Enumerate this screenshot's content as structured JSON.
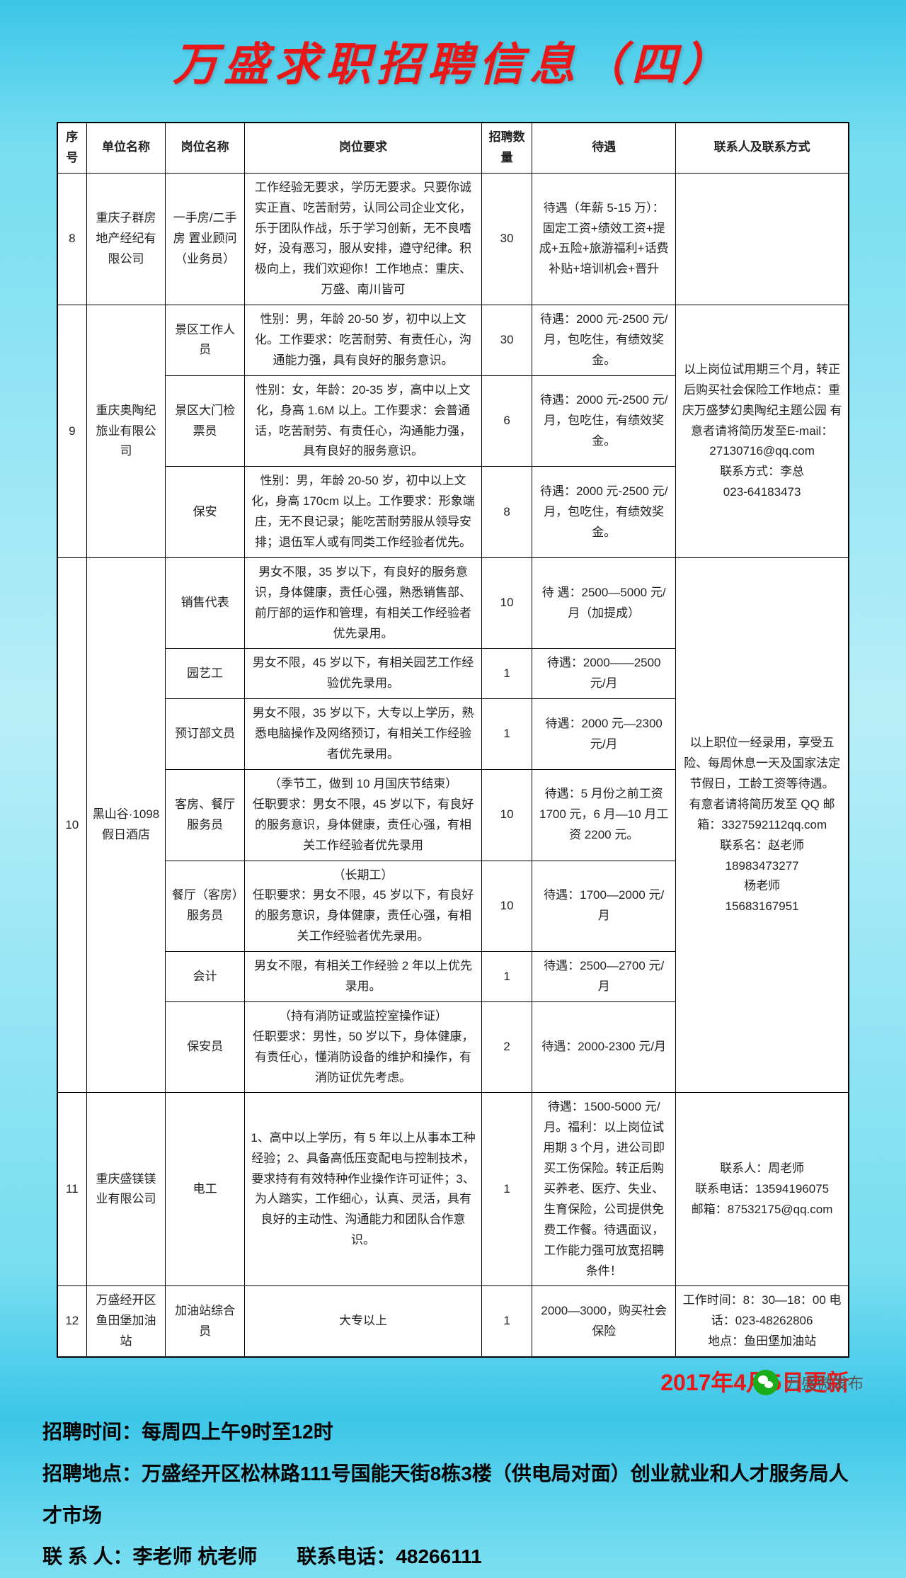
{
  "title": "万盛求职招聘信息（四）",
  "headers": [
    "序号",
    "单位名称",
    "岗位名称",
    "岗位要求",
    "招聘数量",
    "待遇",
    "联系人及联系方式"
  ],
  "rows": [
    {
      "seq": "8",
      "company": "重庆子群房地产经纪有限公司",
      "position": "一手房/二手房 置业顾问（业务员）",
      "req": "工作经验无要求，学历无要求。只要你诚实正直、吃苦耐劳，认同公司企业文化，乐于团队作战，乐于学习创新，无不良嗜好，没有恶习，服从安排，遵守纪律。积极向上，我们欢迎你！工作地点：重庆、万盛、南川皆可",
      "qty": "30",
      "sal": "待遇（年薪 5-15 万）：固定工资+绩效工资+提成+五险+旅游福利+话费补贴+培训机会+晋升",
      "contact": ""
    },
    {
      "seq": "9",
      "company": "重庆奥陶纪旅业有限公司",
      "contact": "以上岗位试用期三个月，转正后购买社会保险工作地点：重庆万盛梦幻奥陶纪主题公园 有意者请将简历发至E-mail：27130716@qq.com\n联系方式：李总\n023-64183473",
      "jobs": [
        {
          "position": "景区工作人员",
          "req": "性别：男，年龄 20-50 岁，初中以上文化。工作要求：吃苦耐劳、有责任心，沟通能力强，具有良好的服务意识。",
          "qty": "30",
          "sal": "待遇：2000 元-2500 元/月，包吃住，有绩效奖金。"
        },
        {
          "position": "景区大门检票员",
          "req": "性别：女，年龄：20-35 岁，高中以上文化，身高 1.6M 以上。工作要求：会普通话，吃苦耐劳、有责任心，沟通能力强，具有良好的服务意识。",
          "qty": "6",
          "sal": "待遇：2000 元-2500 元/月，包吃住，有绩效奖金。"
        },
        {
          "position": "保安",
          "req": "性别：男，年龄 20-50 岁，初中以上文化，身高 170cm 以上。工作要求：形象端庄，无不良记录；能吃苦耐劳服从领导安排；退伍军人或有同类工作经验者优先。",
          "qty": "8",
          "sal": "待遇：2000 元-2500 元/月，包吃住，有绩效奖金。"
        }
      ]
    },
    {
      "seq": "10",
      "company": "黑山谷·1098假日酒店",
      "contact": "以上职位一经录用，享受五险、每周休息一天及国家法定节假日，工龄工资等待遇。\n有意者请将简历发至 QQ 邮箱：3327592112qq.com\n联系名：赵老师\n18983473277\n杨老师\n15683167951",
      "jobs": [
        {
          "position": "销售代表",
          "req": "男女不限，35 岁以下，有良好的服务意识，身体健康，责任心强，熟悉销售部、前厅部的运作和管理，有相关工作经验者优先录用。",
          "qty": "10",
          "sal": "待 遇：2500—5000 元/月（加提成）"
        },
        {
          "position": "园艺工",
          "req": "男女不限，45 岁以下，有相关园艺工作经验优先录用。",
          "qty": "1",
          "sal": "待遇：2000——2500 元/月"
        },
        {
          "position": "预订部文员",
          "req": "男女不限，35 岁以下，大专以上学历，熟悉电脑操作及网络预订，有相关工作经验者优先录用。",
          "qty": "1",
          "sal": "待遇：2000 元—2300 元/月"
        },
        {
          "position": "客房、餐厅服务员",
          "req": "（季节工，做到 10 月国庆节结束）\n任职要求：男女不限，45 岁以下，有良好的服务意识，身体健康，责任心强，有相关工作经验者优先录用",
          "qty": "10",
          "sal": "待遇：5 月份之前工资 1700 元，6 月—10 月工资 2200 元。"
        },
        {
          "position": "餐厅（客房）服务员",
          "req": "（长期工）\n任职要求：男女不限，45 岁以下，有良好的服务意识，身体健康，责任心强，有相关工作经验者优先录用。",
          "qty": "10",
          "sal": "待遇：1700—2000 元/月"
        },
        {
          "position": "会计",
          "req": "男女不限，有相关工作经验 2 年以上优先录用。",
          "qty": "1",
          "sal": "待遇：2500—2700 元/月"
        },
        {
          "position": "保安员",
          "req": "（持有消防证或监控室操作证）\n任职要求：男性，50 岁以下，身体健康，有责任心，懂消防设备的维护和操作，有消防证优先考虑。",
          "qty": "2",
          "sal": "待遇：2000-2300 元/月"
        }
      ]
    },
    {
      "seq": "11",
      "company": "重庆盛镁镁业有限公司",
      "position": "电工",
      "req": "1、高中以上学历，有 5 年以上从事本工种经验；2、具备高低压变配电与控制技术，要求持有有效特种作业操作许可证件；3、为人踏实，工作细心，认真、灵活，具有良好的主动性、沟通能力和团队合作意识。",
      "qty": "1",
      "sal": "待遇：1500-5000 元/月。福利：以上岗位试用期 3 个月，进公司即买工伤保险。转正后购买养老、医疗、失业、生育保险，公司提供免费工作餐。待遇面议，工作能力强可放宽招聘条件！",
      "contact": "联系人：周老师\n联系电话：13594196075\n邮箱：87532175@qq.com"
    },
    {
      "seq": "12",
      "company": "万盛经开区鱼田堡加油站",
      "position": "加油站综合员",
      "req": "大专以上",
      "qty": "1",
      "sal": "2000—3000，购买社会保险",
      "contact": "工作时间：8：30—18：00 电话：023-48262806\n地点：鱼田堡加油站"
    }
  ],
  "update": "2017年4月5日更新",
  "footer": {
    "time": "招聘时间：每周四上午9时至12时",
    "place": "招聘地点：万盛经开区松林路111号国能天街8栋3楼（供电局对面）创业就业和人才服务局人才市场",
    "contact": "联 系 人：李老师 杭老师　　联系电话：48266111"
  },
  "wechat": "万盛微发布"
}
